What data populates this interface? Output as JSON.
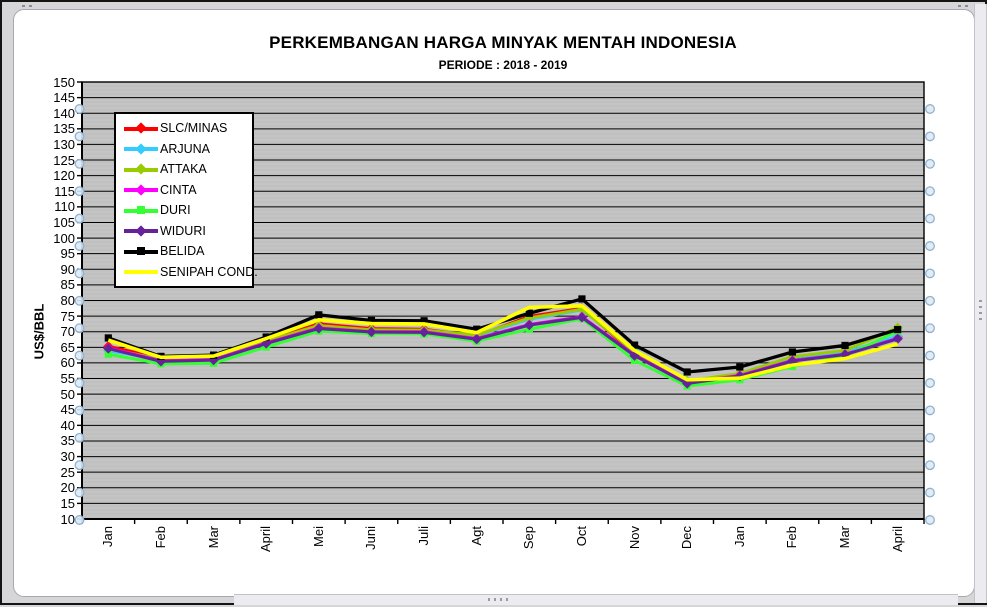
{
  "chart_data": {
    "type": "line",
    "title": "PERKEMBANGAN HARGA MINYAK MENTAH INDONESIA",
    "subtitle": "PERIODE  : 2018  - 2019",
    "ylabel": "US$/BBL",
    "ylim": [
      10,
      150
    ],
    "ytick_step": 5,
    "y_ticks": [
      "150",
      "145",
      "140",
      "135",
      "130",
      "125",
      "120",
      "115",
      "110",
      "105",
      "100",
      "95",
      "90",
      "85",
      "80",
      "75",
      "70",
      "65",
      "60",
      "55",
      "50",
      "45",
      "40",
      "35",
      "30",
      "25",
      "20",
      "15",
      "10"
    ],
    "categories": [
      "Jan",
      "Feb",
      "Mar",
      "April",
      "Mei",
      "Juni",
      "Juli",
      "Agt",
      "Sep",
      "Oct",
      "Nov",
      "Dec",
      "Jan",
      "Feb",
      "Mar",
      "April"
    ],
    "grid": "horizontal, every 5, black on gray",
    "legend_position": "upper-left inside plot",
    "plot_bg": "#c0c0c0",
    "handle_color": "#8fb2d0",
    "series": [
      {
        "name": "SLC/MINAS",
        "color": "#ff0000",
        "marker": "diamond",
        "values": [
          65.3,
          61.6,
          61.9,
          67.4,
          72.5,
          71.0,
          70.8,
          68.6,
          74.9,
          77.5,
          62.9,
          54.0,
          56.5,
          61.3,
          63.2,
          68.4
        ]
      },
      {
        "name": "ARJUNA",
        "color": "#33ccff",
        "marker": "diamond",
        "values": [
          63.9,
          61.0,
          61.3,
          66.7,
          71.7,
          70.4,
          70.3,
          68.7,
          74.0,
          77.0,
          64.3,
          54.3,
          56.3,
          61.8,
          63.4,
          68.6
        ]
      },
      {
        "name": "ATTAKA",
        "color": "#99cc00",
        "marker": "diamond",
        "values": [
          64.5,
          61.2,
          61.5,
          67.0,
          72.0,
          70.6,
          70.5,
          68.9,
          74.4,
          77.2,
          63.5,
          54.2,
          56.6,
          62.0,
          64.0,
          71.3
        ]
      },
      {
        "name": "CINTA",
        "color": "#ff00ff",
        "marker": "diamond",
        "values": [
          64.8,
          60.7,
          61.1,
          66.4,
          71.2,
          70.0,
          70.0,
          67.8,
          72.3,
          74.8,
          62.5,
          53.6,
          56.0,
          60.8,
          62.8,
          67.9
        ]
      },
      {
        "name": "DURI",
        "color": "#33ff33",
        "marker": "square",
        "values": [
          62.8,
          59.7,
          59.9,
          65.1,
          70.2,
          69.4,
          69.3,
          67.0,
          70.8,
          74.2,
          60.8,
          52.6,
          54.6,
          58.9,
          62.2,
          70.2
        ]
      },
      {
        "name": "WIDURI",
        "color": "#662299",
        "marker": "diamond",
        "values": [
          64.6,
          60.5,
          60.9,
          66.2,
          71.0,
          69.9,
          69.8,
          67.6,
          72.1,
          74.6,
          62.3,
          53.4,
          55.8,
          60.6,
          62.7,
          67.7
        ]
      },
      {
        "name": "BELIDA",
        "color": "#000000",
        "marker": "square",
        "values": [
          68.0,
          62.1,
          62.5,
          68.3,
          75.4,
          73.6,
          73.5,
          70.8,
          75.9,
          80.5,
          65.7,
          57.1,
          58.7,
          63.5,
          65.6,
          70.7
        ]
      },
      {
        "name": "SENIPAH COND.",
        "color": "#ffff00",
        "marker": "none",
        "values": [
          67.3,
          61.8,
          62.2,
          67.8,
          73.8,
          72.6,
          72.5,
          69.7,
          77.8,
          78.3,
          64.0,
          54.6,
          55.1,
          59.3,
          61.4,
          66.1
        ]
      }
    ]
  }
}
